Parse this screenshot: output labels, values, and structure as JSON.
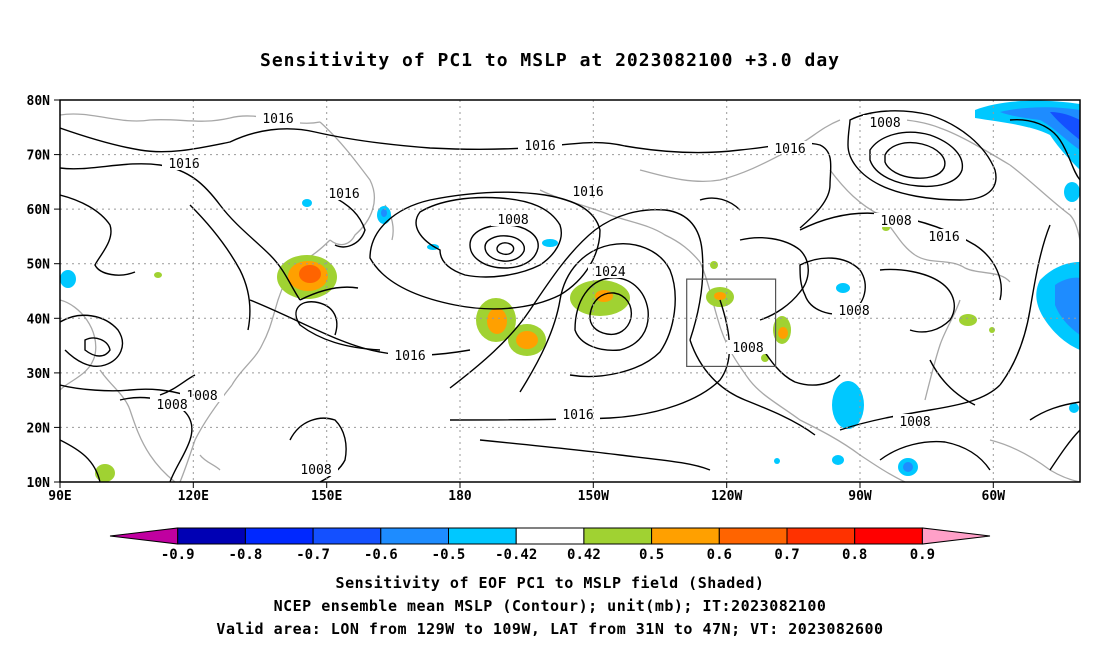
{
  "title": "Sensitivity of PC1 to MSLP at 2023082100 +3.0 day",
  "lat_labels": [
    "80N",
    "70N",
    "60N",
    "50N",
    "40N",
    "30N",
    "20N",
    "10N"
  ],
  "lon_labels": [
    "90E",
    "120E",
    "150E",
    "180",
    "150W",
    "120W",
    "90W",
    "60W"
  ],
  "contour_labels": [
    "1016",
    "1016",
    "1016",
    "1016",
    "1016",
    "1008",
    "1008",
    "1016",
    "1024",
    "1008",
    "1016",
    "1008",
    "1008",
    "1016",
    "1008",
    "1008",
    "1008",
    "1016"
  ],
  "colorbar": {
    "labels": [
      "-0.9",
      "-0.8",
      "-0.7",
      "-0.6",
      "-0.5",
      "-0.42",
      "0.42",
      "0.5",
      "0.6",
      "0.7",
      "0.8",
      "0.9"
    ],
    "colors": [
      "#c000a0",
      "#0000b4",
      "#0028ff",
      "#1450ff",
      "#1e8cff",
      "#00c8ff",
      "#ffffff",
      "#a0d232",
      "#ffa000",
      "#ff6400",
      "#ff3200",
      "#ff0000",
      "#ffa0c8"
    ]
  },
  "valid_box": {
    "lon_from": "129W",
    "lon_to": "109W",
    "lat_from": "31N",
    "lat_to": "47N"
  },
  "footer": {
    "line1": "Sensitivity of EOF PC1 to MSLP field (Shaded)",
    "line2": "NCEP ensemble mean MSLP (Contour); unit(mb); IT:2023082100",
    "line3": "Valid area: LON from 129W to 109W, LAT from 31N to 47N; VT: 2023082600"
  }
}
